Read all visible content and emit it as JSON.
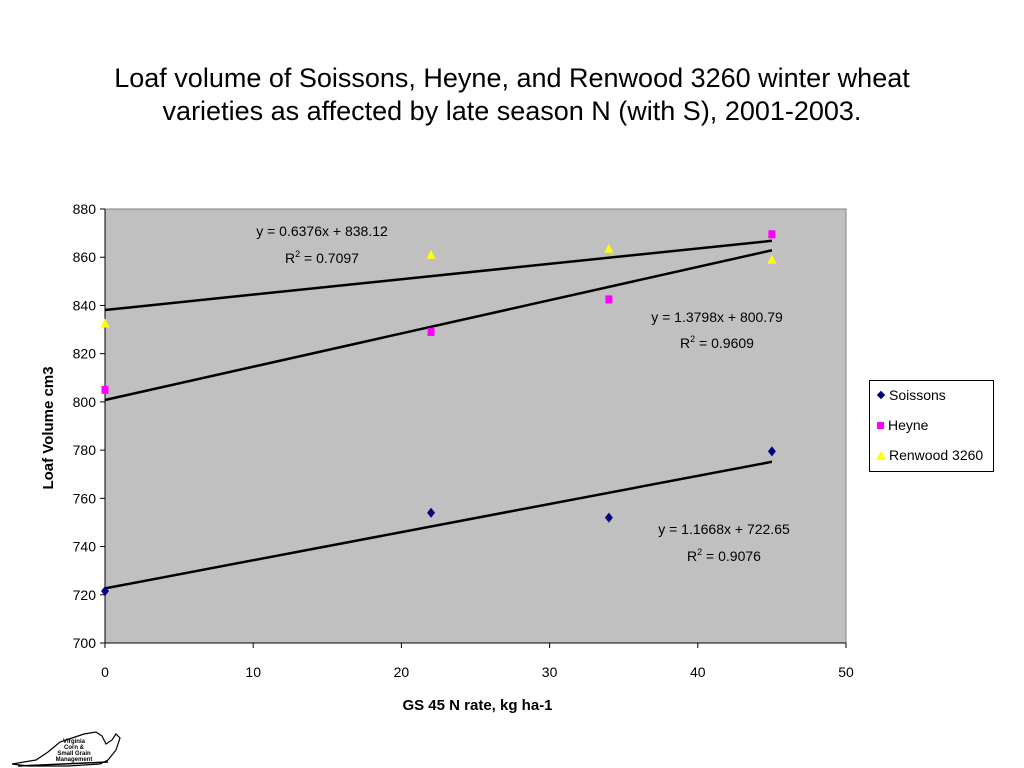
{
  "title_line1": "Loaf volume of Soissons, Heyne, and Renwood 3260 winter wheat",
  "title_line2": "varieties as affected by late season N (with S), 2001-2003.",
  "chart_data": {
    "type": "scatter",
    "xlabel": "GS 45 N rate, kg ha-1",
    "ylabel": "Loaf Volume cm3",
    "xlim": [
      0,
      50
    ],
    "ylim": [
      700,
      880
    ],
    "xticks": [
      0,
      10,
      20,
      30,
      40,
      50
    ],
    "yticks": [
      700,
      720,
      740,
      760,
      780,
      800,
      820,
      840,
      860,
      880
    ],
    "plot_background": "#c0c0c0",
    "grid": false,
    "legend_position": "right",
    "series": [
      {
        "name": "Soissons",
        "marker": "diamond",
        "color": "#000080",
        "x": [
          0,
          22,
          34,
          45
        ],
        "y": [
          721.5,
          754,
          752,
          779.5
        ],
        "trendline": {
          "slope": 1.1668,
          "intercept": 722.65,
          "equation": "y = 1.1668x + 722.65",
          "r2_prefix": "R",
          "r2_sup": "2",
          "r2_value": " = 0.9076"
        }
      },
      {
        "name": "Heyne",
        "marker": "square",
        "color": "#ff00ff",
        "x": [
          0,
          22,
          34,
          45
        ],
        "y": [
          805,
          829,
          842.5,
          869.5
        ],
        "trendline": {
          "slope": 1.3798,
          "intercept": 800.79,
          "equation": "y = 1.3798x + 800.79",
          "r2_prefix": "R",
          "r2_sup": "2",
          "r2_value": " = 0.9609"
        }
      },
      {
        "name": "Renwood 3260",
        "marker": "triangle",
        "color": "#ffff00",
        "x": [
          0,
          22,
          34,
          45
        ],
        "y": [
          832.5,
          861,
          863.5,
          859
        ],
        "trendline": {
          "slope": 0.6376,
          "intercept": 838.12,
          "equation": "y = 0.6376x + 838.12",
          "r2_prefix": "R",
          "r2_sup": "2",
          "r2_value": " = 0.7097"
        }
      }
    ]
  },
  "logo_text": [
    "Virginia",
    "Corn &",
    "Small Grain",
    "Management"
  ]
}
